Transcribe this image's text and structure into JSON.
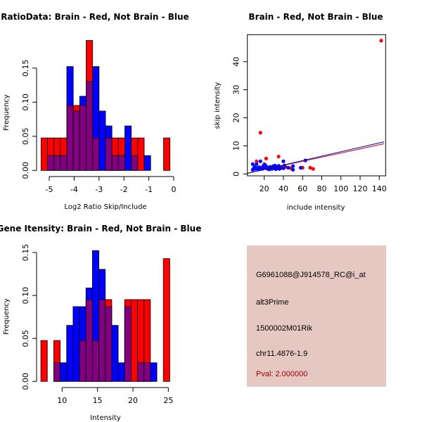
{
  "colors": {
    "red": "#ff0000",
    "blue": "#0000ff",
    "overlap": "#800080",
    "info_bg": "#e6c8c2",
    "pval": "#a00000",
    "red_line": "#c00030",
    "blue_line": "#000099"
  },
  "chart_data": [
    {
      "type": "bar",
      "title": "RatioData: Brain - Red, Not Brain - Blue",
      "xlabel": "Log2 Ratio Skip/Include",
      "ylabel": "Frequency",
      "bin_start": -5.33,
      "bin_width": 0.259,
      "xlim": [
        -5.4,
        0
      ],
      "ylim": [
        0,
        0.19
      ],
      "xticks": [
        -5,
        -4,
        -3,
        -2,
        -1,
        0
      ],
      "xtick_labels": [
        "-5",
        "-4",
        "-3",
        "-2",
        "-1",
        "0"
      ],
      "yticks": [
        0,
        0.05,
        0.1,
        0.15
      ],
      "ytick_labels": [
        "0.00",
        "0.05",
        "0.10",
        "0.15"
      ],
      "series": [
        {
          "name": "Brain",
          "color": "red",
          "values": [
            0.0476,
            0.0476,
            0.0476,
            0.0476,
            0.0952,
            0.0952,
            0.0952,
            0.1905,
            0.0476,
            0,
            0.0476,
            0.0476,
            0.0476,
            0,
            0.0476,
            0.0476,
            0,
            0,
            0,
            0.0476
          ]
        },
        {
          "name": "Not Brain",
          "color": "blue",
          "values": [
            0,
            0.0217,
            0.0217,
            0.0217,
            0.1522,
            0.087,
            0.1087,
            0.1304,
            0.1522,
            0.087,
            0.0652,
            0.0217,
            0.0217,
            0.0652,
            0.0217,
            0,
            0.0217,
            0,
            0,
            0
          ]
        }
      ]
    },
    {
      "type": "scatter",
      "title": "Brain - Red, Not Brain - Blue",
      "xlabel": "include intensity",
      "ylabel": "skip intensity",
      "xlim": [
        2.4,
        145
      ],
      "ylim": [
        -0.7,
        49.6
      ],
      "xticks": [
        20,
        40,
        60,
        80,
        100,
        120,
        140
      ],
      "xtick_labels": [
        "20",
        "40",
        "60",
        "80",
        "100",
        "120",
        "140"
      ],
      "yticks": [
        0,
        10,
        20,
        30,
        40
      ],
      "ytick_labels": [
        "0",
        "10",
        "20",
        "30",
        "40"
      ],
      "series": [
        {
          "name": "Brain",
          "color": "red",
          "points": [
            [
              142,
              47.5
            ],
            [
              16,
              14.7
            ],
            [
              22,
              5.5
            ],
            [
              35,
              6.2
            ],
            [
              12,
              4.5
            ],
            [
              68,
              2.2
            ],
            [
              71,
              1.8
            ],
            [
              60,
              2.2
            ],
            [
              48,
              2.0
            ],
            [
              42,
              2.5
            ],
            [
              20,
              3.5
            ],
            [
              30,
              2.5
            ],
            [
              25,
              2.0
            ],
            [
              38,
              2.2
            ]
          ],
          "fit": {
            "intercept": 0.1,
            "slope": 0.0735
          }
        },
        {
          "name": "Not Brain",
          "color": "blue",
          "points": [
            [
              8,
              3.5
            ],
            [
              8,
              1.5
            ],
            [
              9,
              2.0
            ],
            [
              10,
              2.5
            ],
            [
              11,
              1.8
            ],
            [
              12,
              3.5
            ],
            [
              13,
              2.2
            ],
            [
              14,
              1.6
            ],
            [
              15,
              2.4
            ],
            [
              16,
              4.5
            ],
            [
              17,
              2.0
            ],
            [
              18,
              1.8
            ],
            [
              19,
              2.8
            ],
            [
              20,
              2.2
            ],
            [
              21,
              3.2
            ],
            [
              22,
              2.6
            ],
            [
              23,
              1.9
            ],
            [
              24,
              2.3
            ],
            [
              25,
              1.6
            ],
            [
              26,
              2.5
            ],
            [
              27,
              2.0
            ],
            [
              28,
              1.8
            ],
            [
              29,
              2.7
            ],
            [
              30,
              2.2
            ],
            [
              31,
              3.0
            ],
            [
              32,
              1.7
            ],
            [
              33,
              2.4
            ],
            [
              34,
              2.0
            ],
            [
              35,
              2.9
            ],
            [
              36,
              1.8
            ],
            [
              37,
              2.2
            ],
            [
              40,
              4.5
            ],
            [
              40,
              2.0
            ],
            [
              41,
              3.0
            ],
            [
              45,
              2.2
            ],
            [
              50,
              2.8
            ],
            [
              50,
              1.5
            ],
            [
              58,
              2.2
            ],
            [
              63,
              4.8
            ]
          ],
          "fit": {
            "intercept": 0.0,
            "slope": 0.079
          }
        }
      ]
    },
    {
      "type": "bar",
      "title": "Gene Itensity: Brain - Red, Not Brain - Blue",
      "xlabel": "Intensity",
      "ylabel": "Frequency",
      "bin_start": 7.0,
      "bin_width": 0.91,
      "xlim": [
        7,
        25.2
      ],
      "ylim": [
        0,
        0.15
      ],
      "xticks": [
        10,
        15,
        20,
        25
      ],
      "xtick_labels": [
        "10",
        "15",
        "20",
        "25"
      ],
      "yticks": [
        0,
        0.05,
        0.1,
        0.15
      ],
      "ytick_labels": [
        "0.00",
        "0.05",
        "0.10",
        "0.15"
      ],
      "series": [
        {
          "name": "Brain",
          "color": "red",
          "values": [
            0.0476,
            0,
            0.0476,
            0,
            0,
            0,
            0.0476,
            0.0952,
            0.0476,
            0.0952,
            0.0952,
            0,
            0,
            0.0952,
            0.0952,
            0.0952,
            0.0952,
            0,
            0,
            0.1429
          ]
        },
        {
          "name": "Not Brain",
          "color": "blue",
          "values": [
            0,
            0,
            0.0217,
            0.0217,
            0.0652,
            0.087,
            0.087,
            0.1087,
            0.1522,
            0.1304,
            0.087,
            0.0652,
            0.0217,
            0.087,
            0,
            0.0217,
            0.0217,
            0.0217,
            0,
            0
          ]
        }
      ]
    }
  ],
  "info": {
    "probe": "G6961088@J914578_RC@i_at",
    "event_type": "alt3Prime",
    "gene": "1500002M01Rik",
    "location": "chr11.4876-1.9",
    "pval": "Pval: 2.000000"
  }
}
